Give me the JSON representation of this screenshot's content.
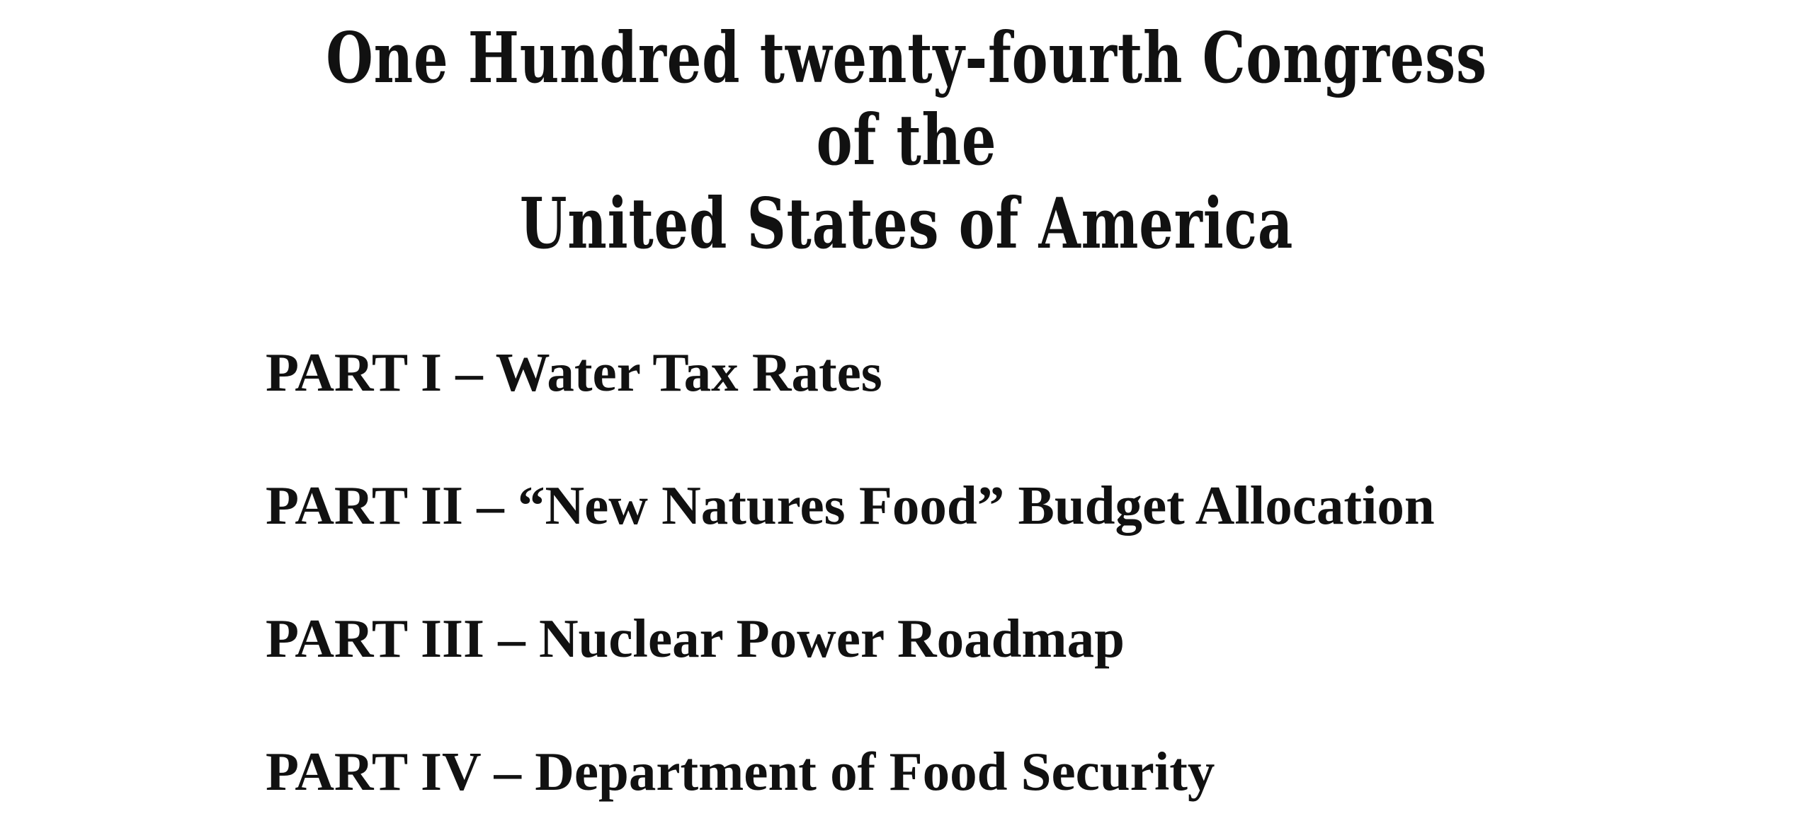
{
  "header": {
    "line1": "One Hundred twenty-fourth Congress",
    "line2": "of the",
    "line3": "United States of America"
  },
  "parts": [
    {
      "label": "PART I – Water Tax Rates"
    },
    {
      "label": "PART II – “New Natures Food” Budget Allocation"
    },
    {
      "label": "PART III – Nuclear Power Roadmap"
    },
    {
      "label": "PART IV – Department of Food Security"
    }
  ]
}
